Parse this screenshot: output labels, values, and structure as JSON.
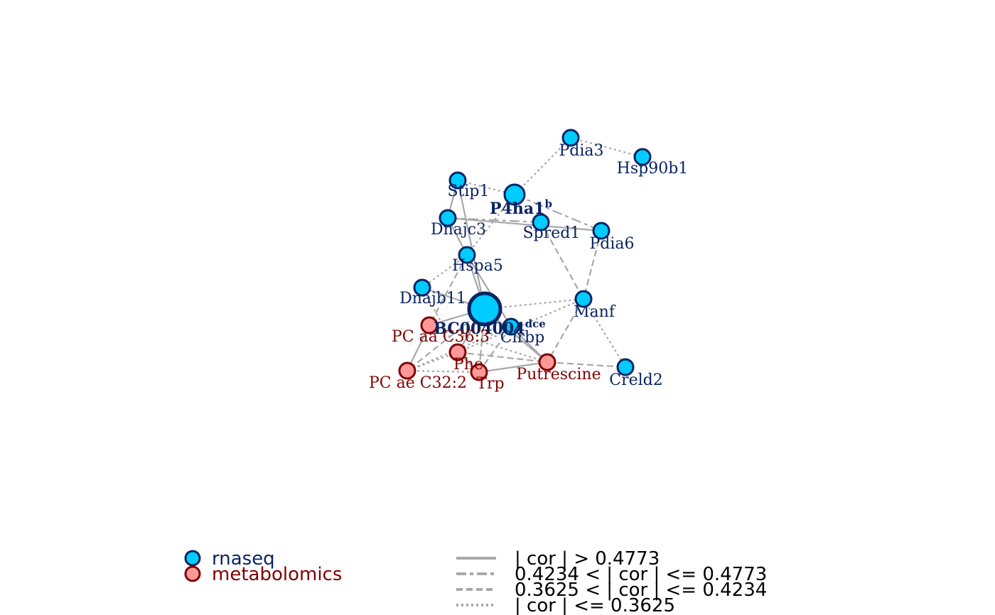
{
  "colors": {
    "rnaseq_fill": "#00CCFF",
    "rnaseq_stroke": "#0A2463",
    "rnaseq_text": "#0A2463",
    "metab_fill": "#FF9999",
    "metab_stroke": "#800000",
    "metab_text": "#800000",
    "edge": "#A8A8A8",
    "legend_text": "#000000"
  },
  "nodes": [
    {
      "id": "Pdia3",
      "label": "Pdia3",
      "type": "rnaseq"
    },
    {
      "id": "Hsp90b1",
      "label": "Hsp90b1",
      "type": "rnaseq"
    },
    {
      "id": "Stip1",
      "label": "Stip1",
      "type": "rnaseq"
    },
    {
      "id": "P4ha1",
      "label": "P4ha1",
      "sup": "b",
      "type": "rnaseq",
      "bold": true
    },
    {
      "id": "Spred1",
      "label": "Spred1",
      "type": "rnaseq"
    },
    {
      "id": "Pdia6",
      "label": "Pdia6",
      "type": "rnaseq"
    },
    {
      "id": "Dnajc3",
      "label": "Dnajc3",
      "type": "rnaseq"
    },
    {
      "id": "Hspa5",
      "label": "Hspa5",
      "type": "rnaseq"
    },
    {
      "id": "Dnajb11",
      "label": "Dnajb11",
      "type": "rnaseq"
    },
    {
      "id": "BC004004",
      "label": "BC004004",
      "sup": "dce",
      "type": "rnaseq",
      "bold": true
    },
    {
      "id": "Manf",
      "label": "Manf",
      "type": "rnaseq"
    },
    {
      "id": "Cirbp",
      "label": "Cirbp",
      "type": "rnaseq"
    },
    {
      "id": "Creld2",
      "label": "Creld2",
      "type": "rnaseq"
    },
    {
      "id": "PCaaC363",
      "label": "PC aa C36:3",
      "type": "metabolomics"
    },
    {
      "id": "Phe",
      "label": "Phe",
      "type": "metabolomics"
    },
    {
      "id": "Putrescine",
      "label": "Putrescine",
      "type": "metabolomics"
    },
    {
      "id": "PCaeC322",
      "label": "PC ae C32:2",
      "type": "metabolomics"
    },
    {
      "id": "Trp",
      "label": "Trp",
      "type": "metabolomics"
    }
  ],
  "edges": [
    {
      "s": "Pdia3",
      "t": "Hsp90b1",
      "style": "dotted"
    },
    {
      "s": "Pdia3",
      "t": "P4ha1",
      "style": "dotted"
    },
    {
      "s": "P4ha1",
      "t": "Pdia6",
      "style": "dashdot"
    },
    {
      "s": "P4ha1",
      "t": "Stip1",
      "style": "dotted"
    },
    {
      "s": "P4ha1",
      "t": "Hspa5",
      "style": "dotted"
    },
    {
      "s": "Stip1",
      "t": "Dnajc3",
      "style": "solid"
    },
    {
      "s": "Stip1",
      "t": "BC004004",
      "style": "solid"
    },
    {
      "s": "Dnajc3",
      "t": "Spred1",
      "style": "dashdot"
    },
    {
      "s": "Dnajc3",
      "t": "Hspa5",
      "style": "solid"
    },
    {
      "s": "Dnajc3",
      "t": "Pdia6",
      "style": "solid"
    },
    {
      "s": "Spred1",
      "t": "Manf",
      "style": "dashed"
    },
    {
      "s": "Pdia6",
      "t": "Manf",
      "style": "dashed"
    },
    {
      "s": "Hspa5",
      "t": "Dnajb11",
      "style": "dotted"
    },
    {
      "s": "Hspa5",
      "t": "BC004004",
      "style": "solid"
    },
    {
      "s": "Hspa5",
      "t": "Cirbp",
      "style": "solid"
    },
    {
      "s": "Hspa5",
      "t": "PCaaC363",
      "style": "dashed"
    },
    {
      "s": "Dnajb11",
      "t": "BC004004",
      "style": "solid"
    },
    {
      "s": "Dnajb11",
      "t": "Phe",
      "style": "dotted"
    },
    {
      "s": "BC004004",
      "t": "Manf",
      "style": "dotted"
    },
    {
      "s": "BC004004",
      "t": "PCaaC363",
      "style": "solid"
    },
    {
      "s": "BC004004",
      "t": "Phe",
      "style": "solid"
    },
    {
      "s": "BC004004",
      "t": "Putrescine",
      "style": "solid"
    },
    {
      "s": "BC004004",
      "t": "PCaeC322",
      "style": "dashed"
    },
    {
      "s": "BC004004",
      "t": "Trp",
      "style": "dashdot"
    },
    {
      "s": "Manf",
      "t": "Creld2",
      "style": "dotted"
    },
    {
      "s": "Manf",
      "t": "Putrescine",
      "style": "dashed"
    },
    {
      "s": "Manf",
      "t": "Phe",
      "style": "dotted"
    },
    {
      "s": "Cirbp",
      "t": "Putrescine",
      "style": "solid"
    },
    {
      "s": "Cirbp",
      "t": "PCaeC322",
      "style": "dotted"
    },
    {
      "s": "Cirbp",
      "t": "Trp",
      "style": "dashed"
    },
    {
      "s": "PCaaC363",
      "t": "PCaeC322",
      "style": "solid"
    },
    {
      "s": "PCaaC363",
      "t": "Putrescine",
      "style": "dotted"
    },
    {
      "s": "Phe",
      "t": "PCaeC322",
      "style": "dotted"
    },
    {
      "s": "Phe",
      "t": "Putrescine",
      "style": "dashed"
    },
    {
      "s": "Phe",
      "t": "Trp",
      "style": "solid"
    },
    {
      "s": "PCaeC322",
      "t": "Trp",
      "style": "dotted"
    },
    {
      "s": "Trp",
      "t": "Putrescine",
      "style": "solid"
    },
    {
      "s": "Putrescine",
      "t": "Creld2",
      "style": "dashed"
    }
  ],
  "legend": {
    "node_types": [
      {
        "label": "rnaseq",
        "type": "rnaseq"
      },
      {
        "label": "metabolomics",
        "type": "metabolomics"
      }
    ],
    "edge_styles": [
      {
        "label": "| cor | > 0.4773",
        "style": "solid"
      },
      {
        "label": "0.4234 < | cor | <= 0.4773",
        "style": "dashdot"
      },
      {
        "label": "0.3625 < | cor | <= 0.4234",
        "style": "dashed"
      },
      {
        "label": "| cor | <= 0.3625",
        "style": "dotted"
      }
    ]
  }
}
